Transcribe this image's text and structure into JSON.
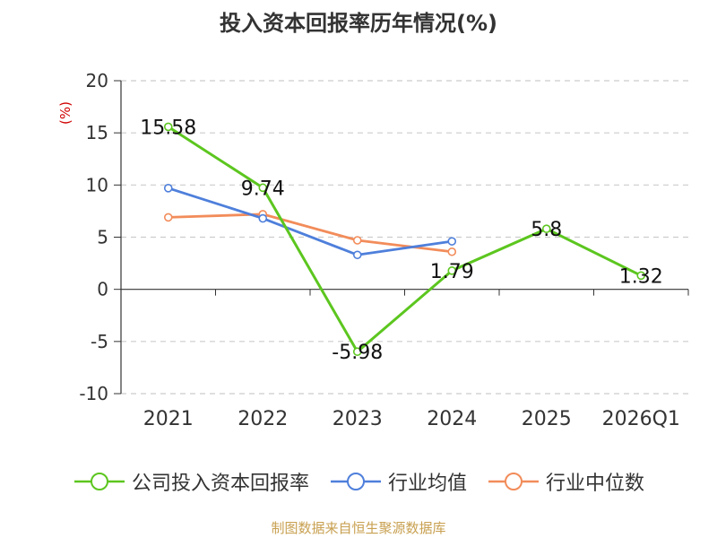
{
  "chart_data": {
    "type": "line",
    "title": "投入资本回报率历年情况(%)",
    "ylabel": "(%)",
    "xlabel": "",
    "categories": [
      "2021",
      "2022",
      "2023",
      "2024",
      "2025",
      "2026Q1"
    ],
    "ylim": [
      -10,
      20
    ],
    "yticks": [
      -10,
      -5,
      0,
      5,
      10,
      15,
      20
    ],
    "grid": true,
    "legend_position": "bottom",
    "series": [
      {
        "name": "公司投入资本回报率",
        "color": "#5cc61f",
        "values": [
          15.58,
          9.74,
          -5.98,
          1.79,
          5.8,
          1.32
        ],
        "labels": [
          "15.58",
          "9.74",
          "-5.98",
          "1.79",
          "5.8",
          "1.32"
        ]
      },
      {
        "name": "行业均值",
        "color": "#4e7fdb",
        "values": [
          9.7,
          6.8,
          3.3,
          4.6,
          null,
          null
        ]
      },
      {
        "name": "行业中位数",
        "color": "#f28c5a",
        "values": [
          6.9,
          7.2,
          4.7,
          3.6,
          null,
          null
        ]
      }
    ]
  },
  "source": "制图数据来自恒生聚源数据库"
}
